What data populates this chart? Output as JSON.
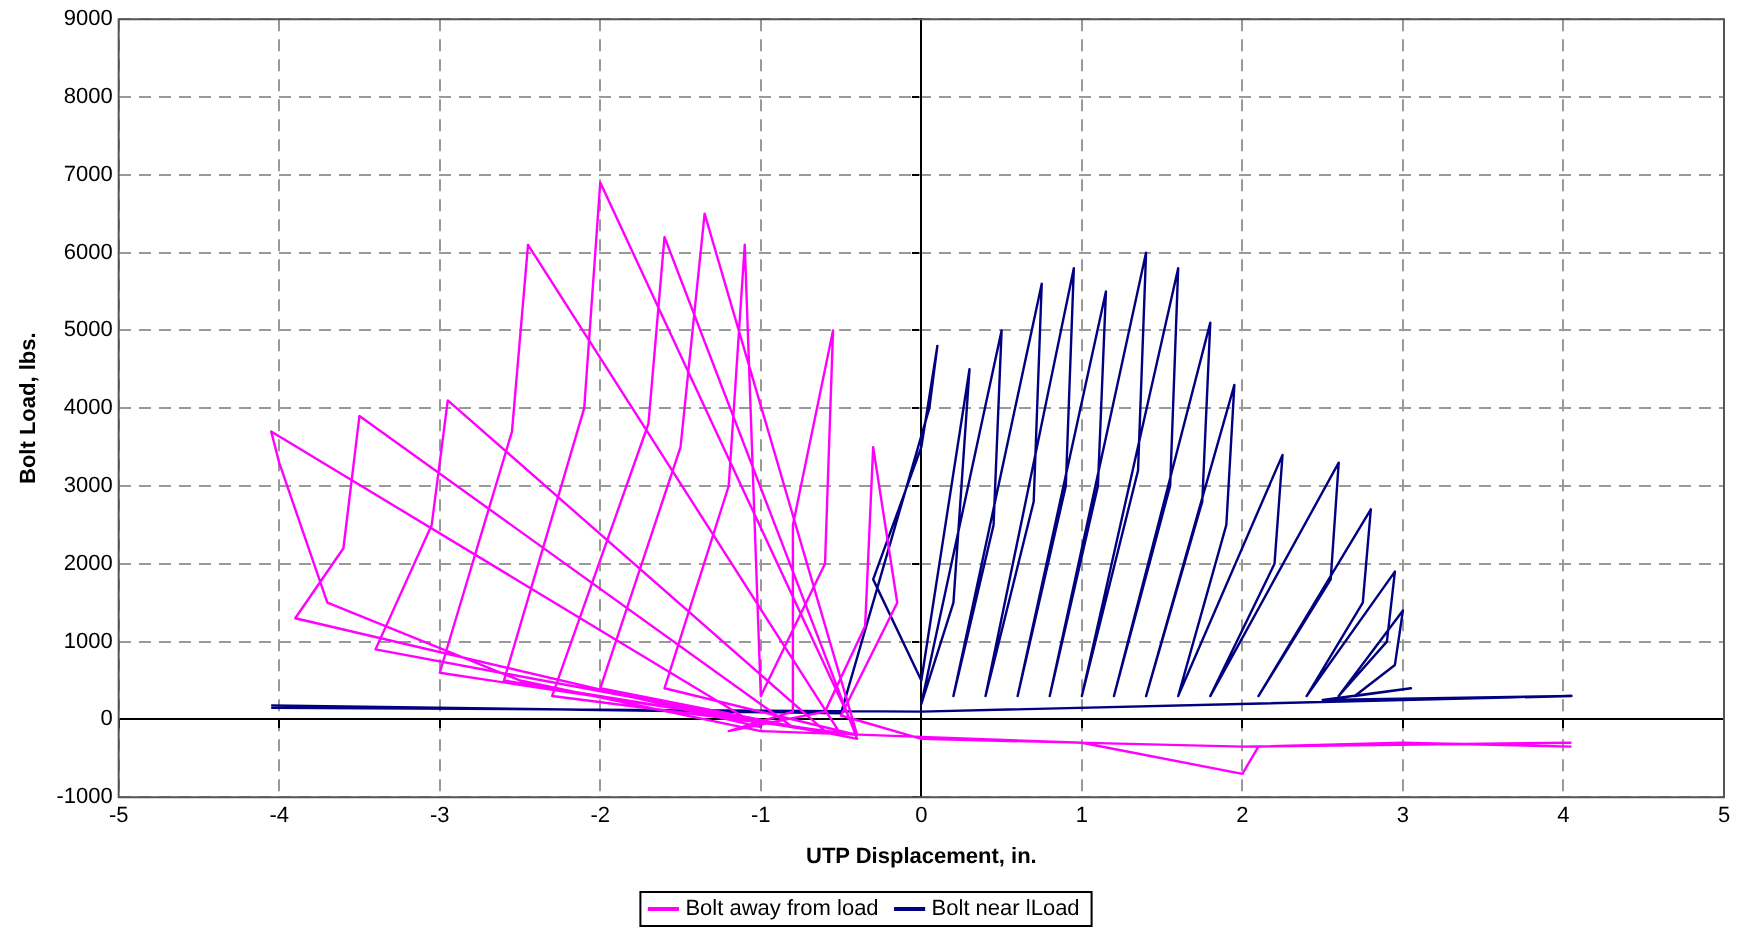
{
  "chart_data": {
    "type": "line",
    "xlabel": "UTP Displacement, in.",
    "ylabel": "Bolt Load, lbs.",
    "xlim": [
      -5,
      5
    ],
    "xticks": [
      -5,
      -4,
      -3,
      -2,
      -1,
      0,
      1,
      2,
      3,
      4,
      5
    ],
    "ylim": [
      -1000,
      9000
    ],
    "yticks": [
      -1000,
      0,
      1000,
      2000,
      3000,
      4000,
      5000,
      6000,
      7000,
      8000,
      9000
    ],
    "grid": true,
    "legend": "bottom",
    "marker": "none",
    "line_style": "solid",
    "series": [
      {
        "name": "Bolt away from load",
        "color": "#ff00ff",
        "x": [
          4.05,
          2,
          0,
          -0.5,
          -0.15,
          -0.3,
          -0.35,
          -0.6,
          -1.2,
          -0.8,
          -0.8,
          -0.55,
          -0.6,
          -1.0,
          -1.1,
          -1.2,
          -1.6,
          -0.4,
          -1.35,
          -1.5,
          -2.0,
          -0.4,
          -1.6,
          -1.7,
          -2.3,
          -0.4,
          -2.0,
          -2.1,
          -2.6,
          -0.5,
          -2.45,
          -2.55,
          -3.0,
          -0.6,
          -2.95,
          -3.05,
          -3.4,
          -0.8,
          -3.5,
          -3.6,
          -3.9,
          -1.0,
          -4.05,
          -4.0,
          -3.7,
          -2.5,
          -1.0,
          1.0,
          2.0,
          2.1,
          3.0,
          4.05
        ],
        "values": [
          -300,
          -350,
          -250,
          50,
          1500,
          3500,
          1200,
          100,
          -150,
          100,
          2500,
          5000,
          2000,
          300,
          6100,
          3000,
          400,
          -200,
          6500,
          3500,
          400,
          -250,
          6200,
          3800,
          300,
          -200,
          6900,
          4000,
          500,
          -200,
          6100,
          3700,
          600,
          -150,
          4100,
          2500,
          900,
          -100,
          3900,
          2200,
          1300,
          -100,
          3700,
          3300,
          1500,
          500,
          -150,
          -300,
          -700,
          -350,
          -300,
          -350
        ]
      },
      {
        "name": "Bolt near lLoad",
        "color": "#000080",
        "x": [
          -4.05,
          -2,
          -0.5,
          0.05,
          0.1,
          0.0,
          -0.3,
          0,
          0.3,
          0.2,
          0.0,
          0.5,
          0.45,
          0.2,
          0.75,
          0.7,
          0.4,
          0.95,
          0.9,
          0.6,
          1.15,
          1.1,
          0.8,
          1.4,
          1.35,
          1.0,
          1.6,
          1.55,
          1.2,
          1.8,
          1.75,
          1.4,
          1.95,
          1.9,
          1.6,
          2.25,
          2.2,
          1.8,
          2.6,
          2.55,
          2.1,
          2.8,
          2.75,
          2.4,
          2.95,
          2.9,
          2.6,
          3.0,
          2.95,
          2.7,
          3.05,
          2.5,
          4.05,
          0,
          -4.05
        ],
        "values": [
          180,
          120,
          80,
          4000,
          4800,
          3500,
          1800,
          500,
          4500,
          1500,
          200,
          5000,
          2500,
          300,
          5600,
          2800,
          300,
          5800,
          3000,
          300,
          5500,
          3000,
          300,
          6000,
          3200,
          300,
          5800,
          3000,
          300,
          5100,
          2800,
          300,
          4300,
          2500,
          300,
          3400,
          2000,
          300,
          3300,
          1800,
          300,
          2700,
          1500,
          300,
          1900,
          1000,
          300,
          1400,
          700,
          300,
          400,
          250,
          300,
          100,
          150
        ]
      }
    ]
  }
}
